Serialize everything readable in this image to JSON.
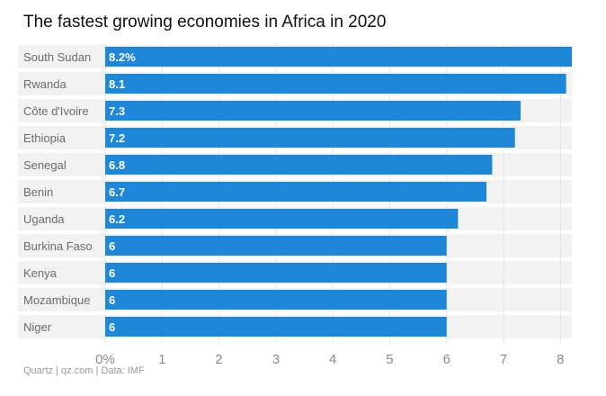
{
  "chart_data": {
    "type": "bar",
    "orientation": "horizontal",
    "title": "The fastest growing economies in Africa in 2020",
    "categories": [
      "South Sudan",
      "Rwanda",
      "Côte d'Ivoire",
      "Ethiopia",
      "Senegal",
      "Benin",
      "Uganda",
      "Burkina Faso",
      "Kenya",
      "Mozambique",
      "Niger"
    ],
    "values": [
      8.2,
      8.1,
      7.3,
      7.2,
      6.8,
      6.7,
      6.2,
      6,
      6,
      6,
      6
    ],
    "data_labels": [
      "8.2%",
      "8.1",
      "7.3",
      "7.2",
      "6.8",
      "6.7",
      "6.2",
      "6",
      "6",
      "6",
      "6"
    ],
    "x_ticks": [
      0,
      1,
      2,
      3,
      4,
      5,
      6,
      7,
      8
    ],
    "x_tick_labels": [
      "0%",
      "1",
      "2",
      "3",
      "4",
      "5",
      "6",
      "7",
      "8"
    ],
    "xlim": [
      0,
      8.2
    ],
    "grid": true,
    "bar_color": "#1f87d8",
    "row_band_color": "#f2f2f2"
  },
  "footer": {
    "source": "Quartz | qz.com | Data: IMF"
  }
}
